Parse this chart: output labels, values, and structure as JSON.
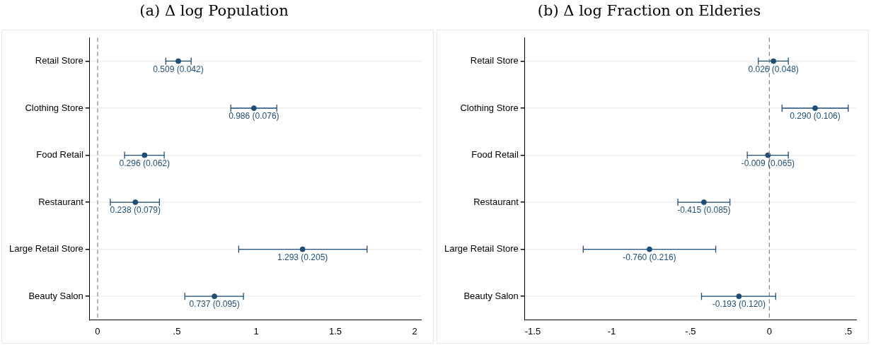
{
  "chart_data": [
    {
      "type": "scatter",
      "title": "(a) Δ log Population",
      "orientation": "horizontal",
      "marker": "circle",
      "grid": "y",
      "legend": false,
      "categories": [
        "Retail Store",
        "Clothing Store",
        "Food Retail",
        "Restaurant",
        "Large Retail Store",
        "Beauty Salon"
      ],
      "series": [
        {
          "color": "#1f4e79",
          "values": [
            0.509,
            0.986,
            0.296,
            0.238,
            1.293,
            0.737
          ],
          "errors": [
            [
              0.43,
              0.59
            ],
            [
              0.84,
              1.13
            ],
            [
              0.17,
              0.42
            ],
            [
              0.08,
              0.39
            ],
            [
              0.89,
              1.7
            ],
            [
              0.55,
              0.92
            ]
          ],
          "value_labels": [
            "0.509 (0.042)",
            "0.986 (0.076)",
            "0.296 (0.062)",
            "0.238 (0.079)",
            "1.293 (0.205)",
            "0.737 (0.095)"
          ]
        }
      ],
      "xlim": [
        -0.05,
        2.04
      ],
      "xticks": [
        0,
        {
          "value": 0.5,
          "label": ".5"
        },
        1,
        1.5,
        2
      ],
      "ref_lines": [
        {
          "axis": "x",
          "value": 0,
          "color": "#888888",
          "line_style": "dashed"
        }
      ]
    },
    {
      "type": "scatter",
      "title": "(b) Δ log Fraction on Elderies",
      "orientation": "horizontal",
      "marker": "circle",
      "grid": "y",
      "legend": false,
      "categories": [
        "Retail Store",
        "Clothing Store",
        "Food Retail",
        "Restaurant",
        "Large Retail Store",
        "Beauty Salon"
      ],
      "series": [
        {
          "color": "#1f4e79",
          "values": [
            0.026,
            0.29,
            -0.009,
            -0.415,
            -0.76,
            -0.193
          ],
          "errors": [
            [
              -0.07,
              0.12
            ],
            [
              0.08,
              0.5
            ],
            [
              -0.14,
              0.12
            ],
            [
              -0.58,
              -0.25
            ],
            [
              -1.18,
              -0.34
            ],
            [
              -0.43,
              0.04
            ]
          ],
          "value_labels": [
            "0.026 (0.048)",
            "0.290 (0.106)",
            "-0.009 (0.065)",
            "-0.415 (0.085)",
            "-0.760 (0.216)",
            "-0.193 (0.120)"
          ]
        }
      ],
      "xlim": [
        -1.55,
        0.55
      ],
      "xticks": [
        {
          "value": -1.5,
          "label": "-1.5"
        },
        -1,
        {
          "value": -0.5,
          "label": "-.5"
        },
        0,
        {
          "value": 0.5,
          "label": ".5"
        }
      ],
      "ref_lines": [
        {
          "axis": "x",
          "value": 0,
          "color": "#888888",
          "line_style": "dashed"
        }
      ]
    }
  ]
}
